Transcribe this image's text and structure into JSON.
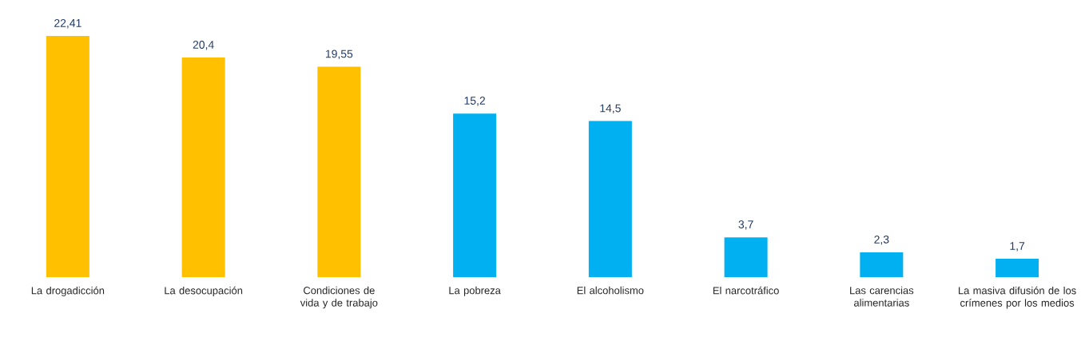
{
  "chart_data": {
    "type": "bar",
    "categories": [
      "La drogadicción",
      "La desocupación",
      "Condiciones de vida y de trabajo",
      "La pobreza",
      "El alcoholismo",
      "El narcotráfico",
      "Las carencias alimentarias",
      "La masiva difusión de los crímenes por los medios"
    ],
    "values": [
      22.41,
      20.4,
      19.55,
      15.2,
      14.5,
      3.7,
      2.3,
      1.7
    ],
    "colors": [
      "#ffc000",
      "#ffc000",
      "#ffc000",
      "#00b0f0",
      "#00b0f0",
      "#00b0f0",
      "#00b0f0",
      "#00b0f0"
    ],
    "value_labels": [
      "22,41",
      "20,4",
      "19,55",
      "15,2",
      "14,5",
      "3,7",
      "2,3",
      "1,7"
    ],
    "data_labels": true
  }
}
